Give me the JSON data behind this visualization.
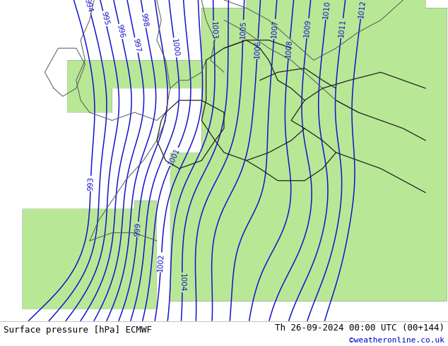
{
  "title_left": "Surface pressure [hPa] ECMWF",
  "title_right": "Th 26-09-2024 00:00 UTC (00+144)",
  "credit": "©weatheronline.co.uk",
  "ocean_color": "#d8d8d8",
  "land_color": "#b8e896",
  "contour_color": "#1414cc",
  "coast_border_color": "#555555",
  "country_border_color": "#222222",
  "footer_text_color": "#000000",
  "credit_color": "#0000cc",
  "footer_fontsize": 9,
  "label_fontsize": 7.5
}
